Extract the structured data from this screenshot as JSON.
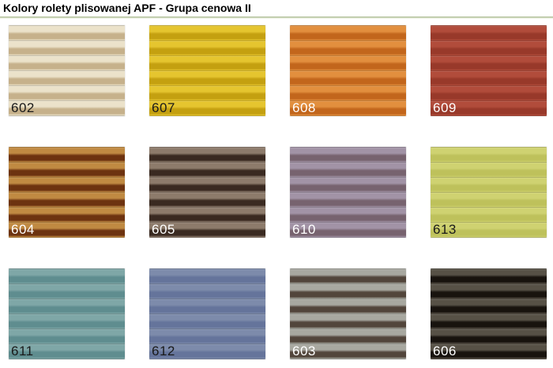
{
  "page": {
    "title": "Kolory rolety plisowanej APF - Grupa cenowa II"
  },
  "divider_color": "#a9b98f",
  "swatches": [
    {
      "code": "602",
      "light_stripe": "#ebe2ca",
      "dark_stripe": "#c6b18b",
      "label_color": "#1a1a1a"
    },
    {
      "code": "607",
      "light_stripe": "#e5c52f",
      "dark_stripe": "#c4a010",
      "label_color": "#1a1a1a"
    },
    {
      "code": "608",
      "light_stripe": "#e28f3e",
      "dark_stripe": "#c2661c",
      "label_color": "#ffffff"
    },
    {
      "code": "609",
      "light_stripe": "#b14c3b",
      "dark_stripe": "#98392a",
      "label_color": "#ffffff"
    },
    {
      "code": "604",
      "light_stripe": "#c08a42",
      "dark_stripe": "#6d3310",
      "label_color": "#ffffff"
    },
    {
      "code": "605",
      "light_stripe": "#8d7b6b",
      "dark_stripe": "#3a2a21",
      "label_color": "#ffffff"
    },
    {
      "code": "610",
      "light_stripe": "#a293a6",
      "dark_stripe": "#77636f",
      "label_color": "#ffffff"
    },
    {
      "code": "613",
      "light_stripe": "#cfd271",
      "dark_stripe": "#bec15b",
      "label_color": "#1a1a1a"
    },
    {
      "code": "611",
      "light_stripe": "#7fa7a7",
      "dark_stripe": "#5f8d8f",
      "label_color": "#1a1a1a"
    },
    {
      "code": "612",
      "light_stripe": "#7d8bab",
      "dark_stripe": "#65749b",
      "label_color": "#1a1a1a"
    },
    {
      "code": "603",
      "light_stripe": "#a8a8a0",
      "dark_stripe": "#52453b",
      "label_color": "#ffffff"
    },
    {
      "code": "606",
      "light_stripe": "#575146",
      "dark_stripe": "#18130e",
      "label_color": "#ffffff"
    }
  ]
}
